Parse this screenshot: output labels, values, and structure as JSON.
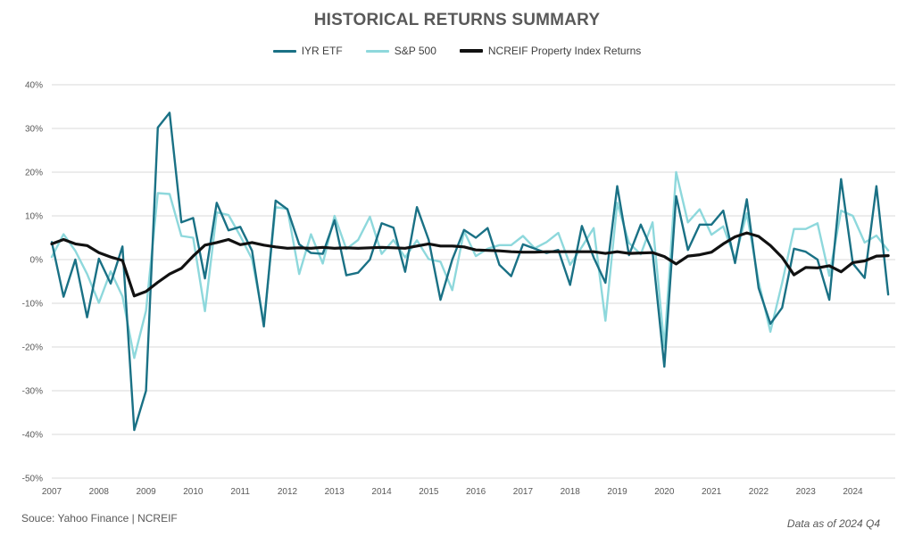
{
  "chart_data": {
    "type": "line",
    "title": "HISTORICAL RETURNS SUMMARY",
    "ylim": [
      -50,
      40
    ],
    "yticks": [
      -50,
      -40,
      -30,
      -20,
      -10,
      0,
      10,
      20,
      30,
      40
    ],
    "ytick_labels": [
      "-50%",
      "-40%",
      "-30%",
      "-20%",
      "-10%",
      "0%",
      "10%",
      "20%",
      "30%",
      "40%"
    ],
    "xlim": [
      2007,
      2024.9
    ],
    "xticks": [
      2007,
      2008,
      2009,
      2010,
      2011,
      2012,
      2013,
      2014,
      2015,
      2016,
      2017,
      2018,
      2019,
      2020,
      2021,
      2022,
      2023,
      2024
    ],
    "xtick_labels": [
      "2007",
      "2008",
      "2009",
      "2010",
      "2011",
      "2012",
      "2013",
      "2014",
      "2015",
      "2016",
      "2017",
      "2018",
      "2019",
      "2020",
      "2021",
      "2022",
      "2023",
      "2024"
    ],
    "grid": true,
    "legend_position": "top",
    "x_start_year": 2007,
    "quarters_per_year": 4,
    "series": [
      {
        "name": "IYR ETF",
        "color": "#1a7185",
        "width": 2.4,
        "values": [
          4,
          -8.5,
          0,
          -13.2,
          0.2,
          -5.5,
          3,
          -39,
          -30,
          30.2,
          33.6,
          8.5,
          9.5,
          -4.3,
          13,
          6.7,
          7.5,
          2,
          -15.3,
          13.5,
          11.5,
          3.5,
          1.5,
          1.3,
          9,
          -3.6,
          -3,
          0,
          8.3,
          7.3,
          -2.8,
          12,
          4.5,
          -9.2,
          0,
          6.8,
          5,
          7.2,
          -1.2,
          -3.8,
          3.5,
          2.5,
          1.5,
          2.2,
          -5.8,
          7.7,
          0.5,
          -5.3,
          16.8,
          1,
          8,
          1.8,
          -24.5,
          14.5,
          2.2,
          8,
          8,
          11.2,
          -0.8,
          13.8,
          -6.5,
          -14.7,
          -11,
          2.5,
          1.8,
          0,
          -9.2,
          18.4,
          -0.9,
          -4.2,
          16.8,
          -8
        ]
      },
      {
        "name": "S&P 500",
        "color": "#8ed8dc",
        "width": 2.4,
        "values": [
          0.6,
          5.8,
          2,
          -3.3,
          -9.9,
          -2.7,
          -8.4,
          -22.5,
          -11.7,
          15.2,
          15,
          5.4,
          5,
          -11.8,
          10.8,
          10.2,
          5.4,
          0.1,
          -14.3,
          12,
          11.6,
          -3.3,
          5.8,
          -0.9,
          10,
          2.4,
          4.5,
          9.8,
          1.3,
          4.5,
          0.5,
          4.4,
          0.1,
          -0.5,
          -7,
          6.5,
          0.8,
          2.5,
          3.3,
          3.3,
          5.4,
          2.6,
          4,
          6.1,
          -1.2,
          2.9,
          7.2,
          -14,
          13,
          3.8,
          1.2,
          8.5,
          -20,
          20,
          8.5,
          11.5,
          5.7,
          7.6,
          0.2,
          10.6,
          -5,
          -16.5,
          -5.3,
          7,
          7,
          8.3,
          -3.7,
          11.2,
          10,
          3.9,
          5.5,
          2.1
        ]
      },
      {
        "name": "NCREIF Property Index Returns",
        "color": "#111111",
        "width": 3.2,
        "values": [
          3.6,
          4.6,
          3.6,
          3.2,
          1.6,
          0.6,
          -0.2,
          -8.3,
          -7.3,
          -5.2,
          -3.3,
          -2,
          0.8,
          3.3,
          3.9,
          4.6,
          3.4,
          3.9,
          3.3,
          2.9,
          2.6,
          2.7,
          2.6,
          2.8,
          2.6,
          2.7,
          2.6,
          2.7,
          2.8,
          2.7,
          2.6,
          3.1,
          3.6,
          3.1,
          3.1,
          2.9,
          2.2,
          2.1,
          2,
          1.8,
          1.7,
          1.7,
          1.8,
          1.8,
          1.8,
          1.8,
          1.8,
          1.4,
          1.8,
          1.4,
          1.5,
          1.6,
          0.7,
          -1,
          0.8,
          1.1,
          1.7,
          3.6,
          5.2,
          6.1,
          5.3,
          3.2,
          0.5,
          -3.5,
          -1.8,
          -1.9,
          -1.4,
          -2.8,
          -0.7,
          -0.3,
          0.8,
          0.9
        ]
      }
    ]
  },
  "footer": {
    "source": "Souce: Yahoo Finance | NCREIF",
    "as_of": "Data as of 2024 Q4"
  }
}
